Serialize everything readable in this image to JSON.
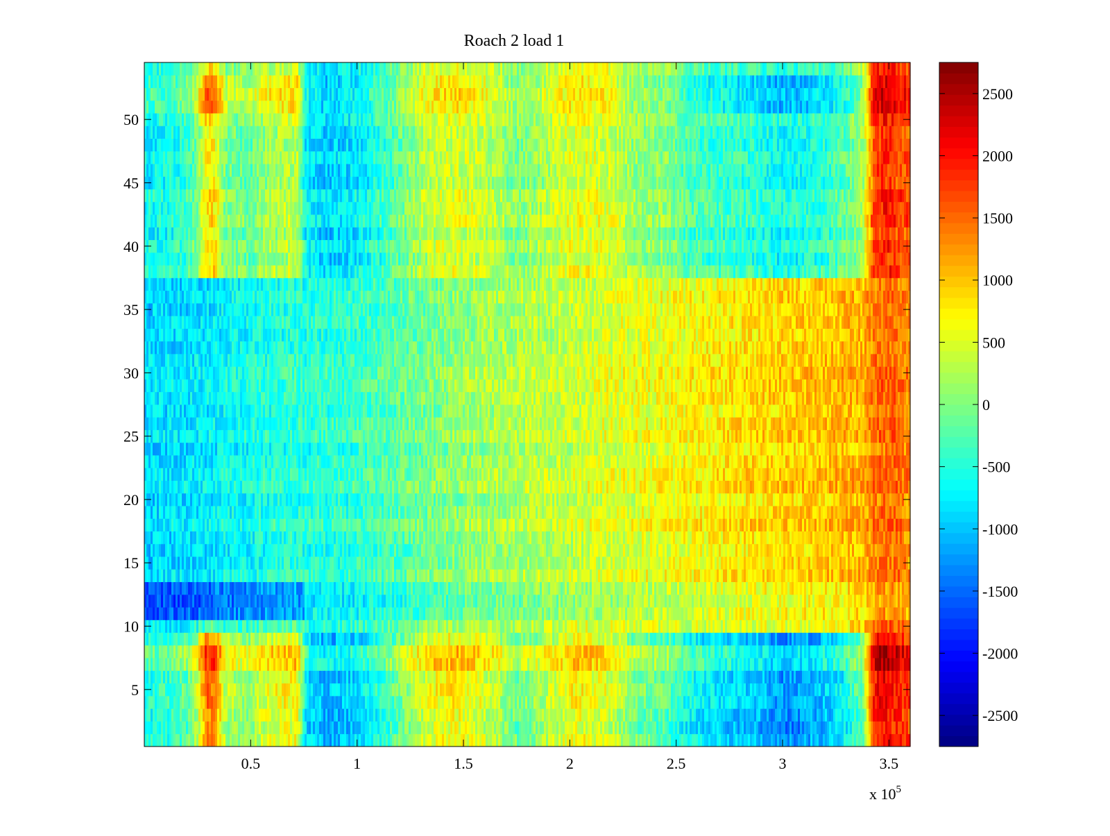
{
  "chart_data": {
    "type": "heatmap",
    "title": "Roach 2 load 1",
    "xlabel": "",
    "ylabel": "",
    "x_multiplier_label": {
      "prefix": "x 10",
      "exponent": "5"
    },
    "xlim": [
      0,
      3.6
    ],
    "ylim": [
      0.5,
      54.5
    ],
    "x_ticks": [
      0.5,
      1,
      1.5,
      2,
      2.5,
      3,
      3.5
    ],
    "x_tick_labels": [
      "0.5",
      "1",
      "1.5",
      "2",
      "2.5",
      "3",
      "3.5"
    ],
    "y_ticks": [
      5,
      10,
      15,
      20,
      25,
      30,
      35,
      40,
      45,
      50
    ],
    "y_tick_labels": [
      "5",
      "10",
      "15",
      "20",
      "25",
      "30",
      "35",
      "40",
      "45",
      "50"
    ],
    "rows": 54,
    "colorbar": {
      "colormap": "jet",
      "range": [
        -2750,
        2750
      ],
      "ticks": [
        -2500,
        -2000,
        -1500,
        -1000,
        -500,
        0,
        500,
        1000,
        1500,
        2000,
        2500
      ],
      "tick_labels": [
        "-2500",
        "-2000",
        "-1500",
        "-1000",
        "-500",
        "0",
        "500",
        "1000",
        "1500",
        "2000",
        "2500"
      ]
    },
    "column_profile": {
      "x": [
        0.0,
        0.1,
        0.2,
        0.25,
        0.29,
        0.33,
        0.38,
        0.45,
        0.5,
        0.55,
        0.65,
        0.72,
        0.76,
        0.85,
        0.95,
        1.05,
        1.15,
        1.25,
        1.35,
        1.45,
        1.55,
        1.65,
        1.75,
        1.85,
        1.95,
        2.03,
        2.1,
        2.2,
        2.3,
        2.45,
        2.55,
        2.7,
        2.85,
        3.0,
        3.1,
        3.2,
        3.3,
        3.38,
        3.43,
        3.48,
        3.53,
        3.6
      ],
      "outer_rows": [
        -600,
        -500,
        -250,
        300,
        1400,
        1400,
        250,
        150,
        100,
        400,
        600,
        650,
        -800,
        -1100,
        -1000,
        -750,
        -350,
        100,
        550,
        650,
        550,
        250,
        -100,
        100,
        400,
        650,
        550,
        400,
        -50,
        -200,
        -650,
        -850,
        -1000,
        -1300,
        -1200,
        -1000,
        -700,
        -100,
        1900,
        2100,
        1900,
        1700
      ],
      "inner_rows": [
        -900,
        -850,
        -850,
        -800,
        -800,
        -750,
        -650,
        -650,
        -600,
        -550,
        -500,
        -450,
        -500,
        -450,
        -450,
        -350,
        -250,
        -150,
        -50,
        50,
        150,
        200,
        250,
        300,
        350,
        400,
        450,
        500,
        550,
        600,
        650,
        750,
        850,
        900,
        950,
        1000,
        1050,
        1100,
        1400,
        1500,
        1450,
        1300
      ]
    },
    "row_features": [
      {
        "rows": [
          1,
          9
        ],
        "blend": 1.0,
        "offset": 0
      },
      {
        "rows": [
          7,
          8
        ],
        "blend": 1.0,
        "offset": 350
      },
      {
        "rows": [
          10,
          10
        ],
        "blend": 0.2,
        "offset": 0
      },
      {
        "rows": [
          11,
          13
        ],
        "blend": 0.0,
        "offset": -250,
        "left_until_x": 0.75,
        "left_offset": -450
      },
      {
        "rows": [
          38,
          54
        ],
        "blend": 0.7,
        "offset": 0
      },
      {
        "rows": [
          51,
          53
        ],
        "blend": 1.0,
        "offset": 150
      }
    ]
  }
}
